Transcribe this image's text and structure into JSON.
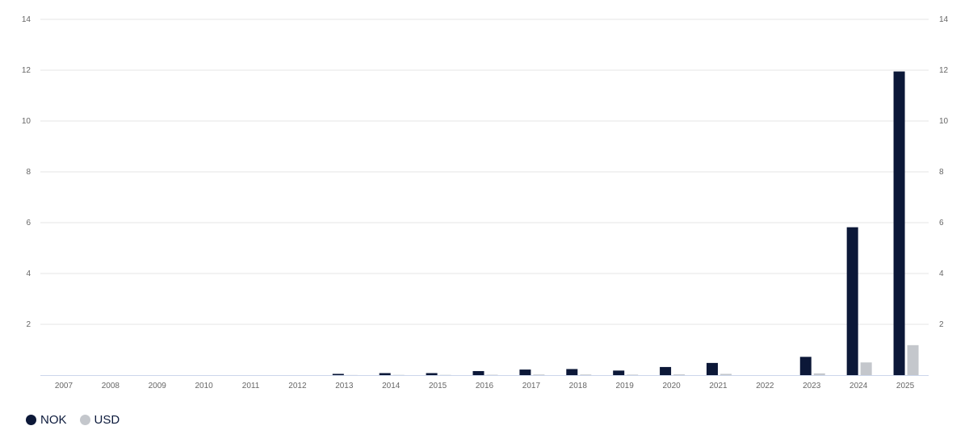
{
  "colors": {
    "nok": "#0c1838",
    "usd": "#c4c7cc",
    "grid": "#e6e6e6",
    "axis": "#ccd6eb"
  },
  "chart_data": {
    "type": "bar",
    "categories": [
      "2007",
      "2008",
      "2009",
      "2010",
      "2011",
      "2012",
      "2013",
      "2014",
      "2015",
      "2016",
      "2017",
      "2018",
      "2019",
      "2020",
      "2021",
      "2022",
      "2023",
      "2024",
      "2025"
    ],
    "series": [
      {
        "name": "NOK",
        "values": [
          0,
          0,
          0,
          0,
          0,
          0,
          0.05,
          0.08,
          0.08,
          0.16,
          0.22,
          0.24,
          0.18,
          0.32,
          0.48,
          0,
          0.72,
          5.82,
          11.95
        ]
      },
      {
        "name": "USD",
        "values": [
          0,
          0,
          0,
          0,
          0,
          0,
          0.005,
          0.01,
          0.01,
          0.015,
          0.025,
          0.025,
          0.02,
          0.03,
          0.05,
          0,
          0.07,
          0.5,
          1.18
        ]
      }
    ],
    "yticks": [
      2,
      4,
      6,
      8,
      10,
      12,
      14
    ],
    "ylim": [
      0,
      14
    ],
    "grid": true,
    "legend_position": "bottom-left",
    "dual_y_axis_labels": true
  }
}
